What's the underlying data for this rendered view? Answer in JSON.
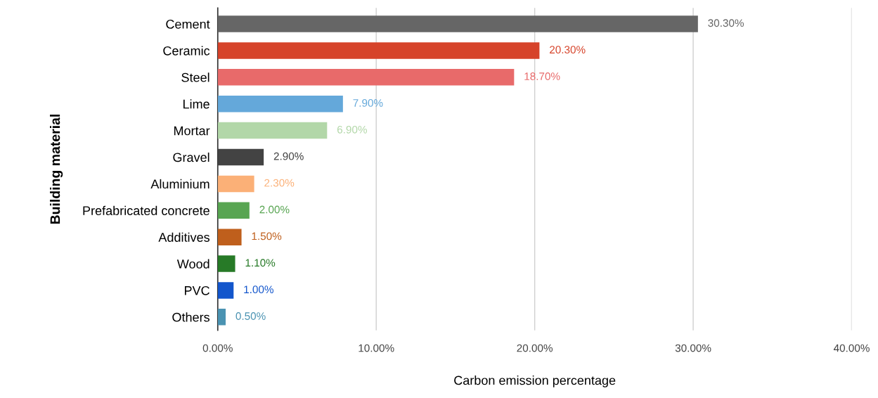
{
  "chart_data": {
    "type": "bar",
    "orientation": "horizontal",
    "xlabel": "Carbon emission percentage",
    "ylabel": "Building material",
    "categories": [
      "Cement",
      "Ceramic",
      "Steel",
      "Lime",
      "Mortar",
      "Gravel",
      "Aluminium",
      "Prefabricated concrete",
      "Additives",
      "Wood",
      "PVC",
      "Others"
    ],
    "values": [
      30.3,
      20.3,
      18.7,
      7.9,
      6.9,
      2.9,
      2.3,
      2.0,
      1.5,
      1.1,
      1.0,
      0.5
    ],
    "colors": [
      "#666666",
      "#d6432a",
      "#e86a6a",
      "#64a8da",
      "#b2d7a8",
      "#434343",
      "#fbb077",
      "#58a552",
      "#bf5f1c",
      "#277a27",
      "#1356cc",
      "#4b93b2"
    ],
    "value_labels": [
      "30.30%",
      "20.30%",
      "18.70%",
      "7.90%",
      "6.90%",
      "2.90%",
      "2.30%",
      "2.00%",
      "1.50%",
      "1.10%",
      "1.00%",
      "0.50%"
    ],
    "xlim": [
      0,
      40
    ],
    "xticks": [
      {
        "value": 0,
        "label": "0.00%"
      },
      {
        "value": 10,
        "label": "10.00%"
      },
      {
        "value": 20,
        "label": "20.00%"
      },
      {
        "value": 30,
        "label": "30.00%"
      },
      {
        "value": 40,
        "label": "40.00%"
      }
    ],
    "grid": "x",
    "legend": false
  }
}
